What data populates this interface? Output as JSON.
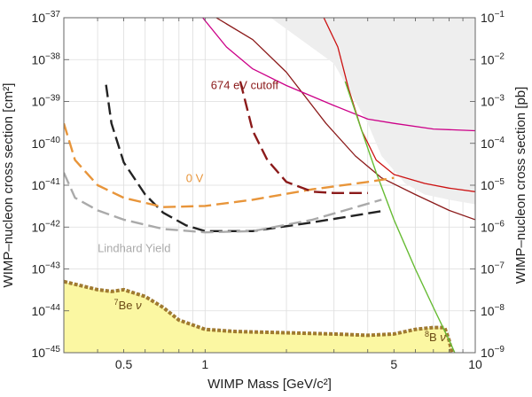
{
  "chart_data": {
    "type": "line",
    "xlabel": "WIMP Mass [GeV/c²]",
    "ylabel_left": "WIMP–nucleon cross section [cm²]",
    "ylabel_right": "WIMP–nucleon cross section [pb]",
    "x_scale": "log",
    "y_scale": "log",
    "xlim": [
      0.3,
      10
    ],
    "ylim_left": [
      1e-45,
      1e-37
    ],
    "ylim_right": [
      1e-09,
      0.1
    ],
    "grid": true,
    "x_ticks": [
      {
        "value": 0.5,
        "label": "0.5"
      },
      {
        "value": 1,
        "label": "1"
      },
      {
        "value": 5,
        "label": "5"
      },
      {
        "value": 10,
        "label": "10"
      }
    ],
    "y_ticks_left": [
      {
        "exp": -37,
        "base": "10",
        "sup": "−37"
      },
      {
        "exp": -38,
        "base": "10",
        "sup": "−38"
      },
      {
        "exp": -39,
        "base": "10",
        "sup": "−39"
      },
      {
        "exp": -40,
        "base": "10",
        "sup": "−40"
      },
      {
        "exp": -41,
        "base": "10",
        "sup": "−41"
      },
      {
        "exp": -42,
        "base": "10",
        "sup": "−42"
      },
      {
        "exp": -43,
        "base": "10",
        "sup": "−43"
      },
      {
        "exp": -44,
        "base": "10",
        "sup": "−44"
      },
      {
        "exp": -45,
        "base": "10",
        "sup": "−45"
      }
    ],
    "y_ticks_right": [
      {
        "exp": -37,
        "base": "10",
        "sup": "−1"
      },
      {
        "exp": -38,
        "base": "10",
        "sup": "−2"
      },
      {
        "exp": -39,
        "base": "10",
        "sup": "−3"
      },
      {
        "exp": -40,
        "base": "10",
        "sup": "−4"
      },
      {
        "exp": -41,
        "base": "10",
        "sup": "−5"
      },
      {
        "exp": -42,
        "base": "10",
        "sup": "−6"
      },
      {
        "exp": -43,
        "base": "10",
        "sup": "−7"
      },
      {
        "exp": -44,
        "base": "10",
        "sup": "−8"
      },
      {
        "exp": -45,
        "base": "10",
        "sup": "−9"
      }
    ],
    "excluded_region": {
      "color": "#eeeeee",
      "points": [
        [
          1.75,
          1e-37
        ],
        [
          3.0,
          8e-39
        ],
        [
          4.0,
          3e-40
        ],
        [
          4.5,
          5e-41
        ],
        [
          5.5,
          1.1e-41
        ],
        [
          6.5,
          6e-42
        ],
        [
          8,
          4.5e-42
        ],
        [
          10,
          3.5e-42
        ]
      ]
    },
    "neutrino_floor": {
      "fill": "#fbf7a2",
      "border": "#a07a30",
      "points": [
        [
          0.3,
          5e-44
        ],
        [
          0.4,
          3.2e-44
        ],
        [
          0.45,
          2.9e-44
        ],
        [
          0.5,
          3.2e-44
        ],
        [
          0.6,
          2.2e-44
        ],
        [
          0.7,
          1.2e-44
        ],
        [
          0.8,
          6e-45
        ],
        [
          1.0,
          3.6e-45
        ],
        [
          1.3,
          3.2e-45
        ],
        [
          2.0,
          3e-45
        ],
        [
          3.0,
          2.8e-45
        ],
        [
          4.0,
          2.6e-45
        ],
        [
          5.0,
          2.8e-45
        ],
        [
          6.0,
          3.6e-45
        ],
        [
          7.0,
          4e-45
        ],
        [
          7.7,
          4e-45
        ],
        [
          8.0,
          2e-45
        ],
        [
          8.2,
          1e-45
        ]
      ]
    },
    "series": [
      {
        "color": "#8b1a1a",
        "dash": "none",
        "width": 1.3,
        "points": [
          [
            1.1,
            1e-37
          ],
          [
            1.5,
            3e-38
          ],
          [
            2.0,
            5e-39
          ],
          [
            2.8,
            3e-40
          ],
          [
            3.6,
            5e-41
          ],
          [
            4.5,
            1.5e-41
          ],
          [
            6.0,
            6e-42
          ],
          [
            8.0,
            2.5e-42
          ],
          [
            10,
            1.5e-42
          ]
        ]
      },
      {
        "color": "#cc1111",
        "dash": "none",
        "width": 1.3,
        "points": [
          [
            2.75,
            1e-37
          ],
          [
            3.1,
            2e-38
          ],
          [
            3.4,
            2e-39
          ],
          [
            3.8,
            2e-40
          ],
          [
            4.3,
            4e-41
          ],
          [
            5.0,
            1.8e-41
          ],
          [
            6.5,
            1.1e-41
          ],
          [
            8.0,
            8.5e-42
          ],
          [
            10,
            7e-42
          ]
        ]
      },
      {
        "color": "#cc0088",
        "dash": "none",
        "width": 1.3,
        "points": [
          [
            0.98,
            1e-37
          ],
          [
            1.2,
            2e-38
          ],
          [
            1.5,
            6e-39
          ],
          [
            2.0,
            2.4e-39
          ],
          [
            3.0,
            8e-40
          ],
          [
            4.0,
            3.8e-40
          ],
          [
            5.0,
            3e-40
          ],
          [
            7.0,
            2.2e-40
          ],
          [
            10,
            2e-40
          ]
        ]
      },
      {
        "color": "#66bb33",
        "dash": "none",
        "width": 1.4,
        "points": [
          [
            3.3,
            3e-39
          ],
          [
            3.8,
            2e-40
          ],
          [
            4.3,
            2e-41
          ],
          [
            5.0,
            1.5e-42
          ],
          [
            6.0,
            1e-43
          ],
          [
            7.0,
            1.2e-44
          ],
          [
            8.0,
            2e-45
          ],
          [
            8.4,
            1e-45
          ]
        ]
      },
      {
        "color": "#222222",
        "dash": "14 6",
        "width": 2.4,
        "points": [
          [
            0.43,
            2.5e-39
          ],
          [
            0.45,
            3e-40
          ],
          [
            0.5,
            3.5e-41
          ],
          [
            0.6,
            6e-42
          ],
          [
            0.7,
            2.2e-42
          ],
          [
            0.85,
            1.1e-42
          ],
          [
            1.0,
            8e-43
          ],
          [
            1.5,
            8e-43
          ],
          [
            2.5,
            1.3e-42
          ],
          [
            4.5,
            2.4e-42
          ]
        ]
      },
      {
        "color": "#aaaaaa",
        "dash": "14 6",
        "width": 2.4,
        "points": [
          [
            0.3,
            2e-41
          ],
          [
            0.33,
            5e-42
          ],
          [
            0.4,
            2.5e-42
          ],
          [
            0.5,
            1.5e-42
          ],
          [
            0.7,
            9e-43
          ],
          [
            1.0,
            7.5e-43
          ],
          [
            1.5,
            8e-43
          ],
          [
            2.5,
            1.5e-42
          ],
          [
            4.5,
            4.5e-42
          ]
        ]
      },
      {
        "color": "#e8953a",
        "dash": "14 6",
        "width": 2.4,
        "points": [
          [
            0.3,
            3e-40
          ],
          [
            0.33,
            4e-41
          ],
          [
            0.4,
            1e-41
          ],
          [
            0.5,
            5e-42
          ],
          [
            0.7,
            3e-42
          ],
          [
            1.0,
            3.2e-42
          ],
          [
            1.5,
            4.5e-42
          ],
          [
            2.5,
            8e-42
          ],
          [
            4.0,
            1.2e-41
          ],
          [
            5.0,
            1.5e-41
          ]
        ]
      },
      {
        "color": "#8b1a1a",
        "dash": "14 6",
        "width": 2.4,
        "points": [
          [
            1.35,
            3e-39
          ],
          [
            1.5,
            2e-40
          ],
          [
            1.7,
            4e-41
          ],
          [
            2.0,
            1.2e-41
          ],
          [
            2.5,
            7e-42
          ],
          [
            3.0,
            6.5e-42
          ],
          [
            4.0,
            6.5e-42
          ]
        ]
      }
    ],
    "annotations": [
      {
        "text": "674 eV cutoff",
        "x": 1.05,
        "y": 2e-39,
        "color": "#8b1a1a"
      },
      {
        "text": "0 V",
        "x": 0.85,
        "y": 1.2e-41,
        "color": "#e8953a"
      },
      {
        "text": "Lindhard Yield",
        "x": 0.4,
        "y": 2.5e-43,
        "color": "#aaaaaa"
      }
    ],
    "floor_labels": [
      {
        "sup": "7",
        "text": "Be ",
        "nu": "ν",
        "x": 0.46,
        "y": 1.1e-44,
        "color": "#6b4a15"
      },
      {
        "sup": "8",
        "text": "B ",
        "nu": "ν",
        "x": 6.5,
        "y": 1.9e-45,
        "color": "#6b4a15"
      }
    ]
  }
}
